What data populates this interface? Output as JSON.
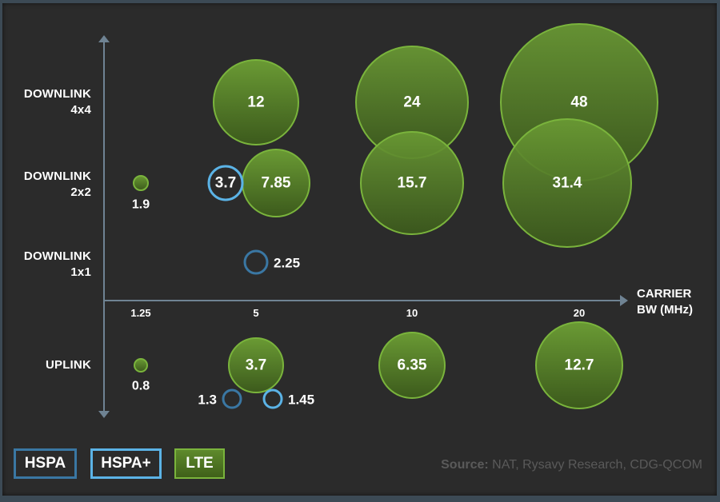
{
  "chart_data": {
    "type": "bubble",
    "title": "",
    "xlabel": "CARRIER BW (MHz)",
    "ylabel": "",
    "x_categories": [
      "1.25",
      "5",
      "10",
      "20"
    ],
    "y_categories": [
      {
        "key": "dl4x4",
        "line1": "DOWNLINK",
        "line2": "4x4"
      },
      {
        "key": "dl2x2",
        "line1": "DOWNLINK",
        "line2": "2x2"
      },
      {
        "key": "dl1x1",
        "line1": "DOWNLINK",
        "line2": "1x1"
      },
      {
        "key": "ul",
        "line1": "UPLINK",
        "line2": ""
      }
    ],
    "series": [
      {
        "name": "HSPA",
        "color": "#3a77a3",
        "points": [
          {
            "x": "5",
            "row": "dl1x1",
            "value": 2.25,
            "label": "2.25"
          },
          {
            "x": "5",
            "row": "ul",
            "value": 1.3,
            "label": "1.3"
          }
        ]
      },
      {
        "name": "HSPA+",
        "color": "#5bb3e6",
        "points": [
          {
            "x": "5",
            "row": "dl2x2",
            "value": 3.7,
            "label": "3.7"
          },
          {
            "x": "5",
            "row": "ul",
            "value": 1.45,
            "label": "1.45"
          }
        ]
      },
      {
        "name": "LTE",
        "color": "#6a9a34",
        "points": [
          {
            "x": "5",
            "row": "dl4x4",
            "value": 12,
            "label": "12"
          },
          {
            "x": "10",
            "row": "dl4x4",
            "value": 24,
            "label": "24"
          },
          {
            "x": "20",
            "row": "dl4x4",
            "value": 48,
            "label": "48"
          },
          {
            "x": "1.25",
            "row": "dl2x2",
            "value": 1.9,
            "label": "1.9"
          },
          {
            "x": "5",
            "row": "dl2x2",
            "value": 7.85,
            "label": "7.85"
          },
          {
            "x": "10",
            "row": "dl2x2",
            "value": 15.7,
            "label": "15.7"
          },
          {
            "x": "20",
            "row": "dl2x2",
            "value": 31.4,
            "label": "31.4"
          },
          {
            "x": "1.25",
            "row": "ul",
            "value": 0.8,
            "label": "0.8"
          },
          {
            "x": "5",
            "row": "ul",
            "value": 3.7,
            "label": "3.7"
          },
          {
            "x": "10",
            "row": "ul",
            "value": 6.35,
            "label": "6.35"
          },
          {
            "x": "20",
            "row": "ul",
            "value": 12.7,
            "label": "12.7"
          }
        ]
      }
    ],
    "legend": [
      "HSPA",
      "HSPA+",
      "LTE"
    ],
    "legend_position": "bottom-left",
    "annotation": "Source: NAT, Rysavy Research, CDG-QCOM"
  },
  "axis": {
    "x_title_line1": "CARRIER",
    "x_title_line2": "BW (MHz)"
  },
  "legend": {
    "hspa": "HSPA",
    "hspa_plus": "HSPA+",
    "lte": "LTE"
  },
  "source": {
    "label": "Source:",
    "text": " NAT, Rysavy Research, CDG-QCOM"
  },
  "colors": {
    "background": "#2b2b2b",
    "axis": "#6f8393",
    "lte_fill_top": "#6a9a34",
    "lte_fill_bottom": "#3c5a1c",
    "lte_border": "#7ab43c",
    "hspa": "#3a77a3",
    "hspa_plus": "#5bb3e6"
  }
}
